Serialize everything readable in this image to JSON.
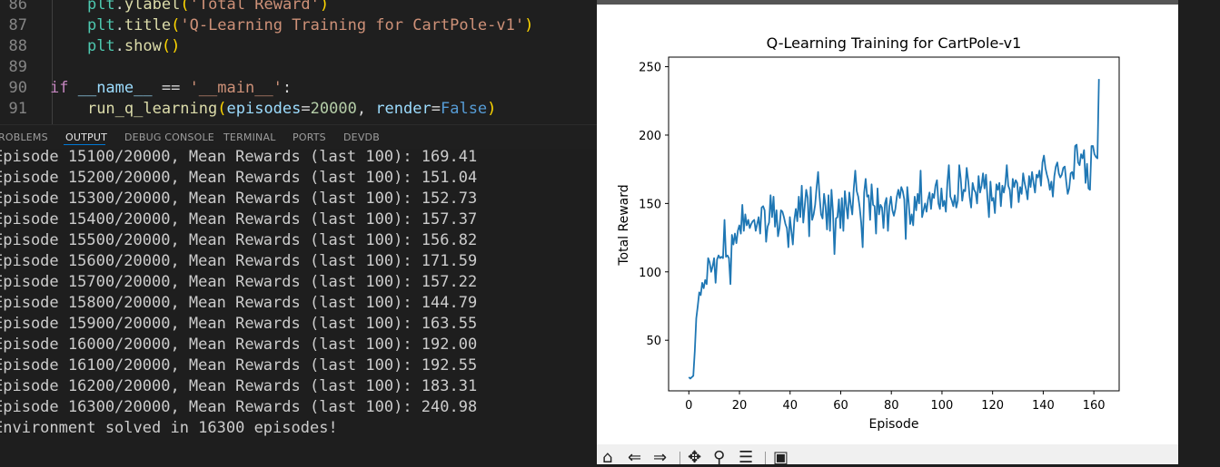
{
  "editor": {
    "lines": [
      {
        "num": "86",
        "tokens": [
          {
            "t": "    ",
            "c": "op"
          },
          {
            "t": "plt",
            "c": "cls"
          },
          {
            "t": ".",
            "c": "op"
          },
          {
            "t": "ylabel",
            "c": "fn"
          },
          {
            "t": "(",
            "c": "paren"
          },
          {
            "t": "'Total Reward'",
            "c": "str"
          },
          {
            "t": ")",
            "c": "paren"
          }
        ]
      },
      {
        "num": "87",
        "tokens": [
          {
            "t": "    ",
            "c": "op"
          },
          {
            "t": "plt",
            "c": "cls"
          },
          {
            "t": ".",
            "c": "op"
          },
          {
            "t": "title",
            "c": "fn"
          },
          {
            "t": "(",
            "c": "paren"
          },
          {
            "t": "'Q-Learning Training for CartPole-v1'",
            "c": "str"
          },
          {
            "t": ")",
            "c": "paren"
          }
        ]
      },
      {
        "num": "88",
        "tokens": [
          {
            "t": "    ",
            "c": "op"
          },
          {
            "t": "plt",
            "c": "cls"
          },
          {
            "t": ".",
            "c": "op"
          },
          {
            "t": "show",
            "c": "fn"
          },
          {
            "t": "()",
            "c": "paren"
          }
        ]
      },
      {
        "num": "89",
        "tokens": []
      },
      {
        "num": "90",
        "tokens": [
          {
            "t": "if ",
            "c": "kw"
          },
          {
            "t": "__name__",
            "c": "var"
          },
          {
            "t": " == ",
            "c": "op"
          },
          {
            "t": "'__main__'",
            "c": "str"
          },
          {
            "t": ":",
            "c": "op"
          }
        ]
      },
      {
        "num": "91",
        "tokens": [
          {
            "t": "    ",
            "c": "op"
          },
          {
            "t": "run_q_learning",
            "c": "fn"
          },
          {
            "t": "(",
            "c": "paren"
          },
          {
            "t": "episodes",
            "c": "var"
          },
          {
            "t": "=",
            "c": "op"
          },
          {
            "t": "20000",
            "c": "num"
          },
          {
            "t": ", ",
            "c": "op"
          },
          {
            "t": "render",
            "c": "var"
          },
          {
            "t": "=",
            "c": "op"
          },
          {
            "t": "False",
            "c": "const"
          },
          {
            "t": ")",
            "c": "paren"
          }
        ]
      }
    ]
  },
  "panel": {
    "tabs": [
      "ROBLEMS",
      "OUTPUT",
      "DEBUG CONSOLE",
      "TERMINAL",
      "PORTS",
      "DEVDB"
    ],
    "active_tab": "OUTPUT"
  },
  "output": {
    "lines": [
      "Episode 15100/20000, Mean Rewards (last 100): 169.41",
      "Episode 15200/20000, Mean Rewards (last 100): 151.04",
      "Episode 15300/20000, Mean Rewards (last 100): 152.73",
      "Episode 15400/20000, Mean Rewards (last 100): 157.37",
      "Episode 15500/20000, Mean Rewards (last 100): 156.82",
      "Episode 15600/20000, Mean Rewards (last 100): 171.59",
      "Episode 15700/20000, Mean Rewards (last 100): 157.22",
      "Episode 15800/20000, Mean Rewards (last 100): 144.79",
      "Episode 15900/20000, Mean Rewards (last 100): 163.55",
      "Episode 16000/20000, Mean Rewards (last 100): 192.00",
      "Episode 16100/20000, Mean Rewards (last 100): 192.55",
      "Episode 16200/20000, Mean Rewards (last 100): 183.31",
      "Episode 16300/20000, Mean Rewards (last 100): 240.98",
      "Environment solved in 16300 episodes!"
    ]
  },
  "toolbar": {
    "icons": [
      "home-icon",
      "back-icon",
      "forward-icon",
      "pan-icon",
      "zoom-icon",
      "configure-icon",
      "save-icon"
    ]
  },
  "colors": {
    "line": "#1f77b4",
    "accent": "#0078d4"
  },
  "chart_data": {
    "type": "line",
    "title": "Q-Learning Training for CartPole-v1",
    "xlabel": "Episode",
    "ylabel": "Total Reward",
    "xlim": [
      -8,
      170
    ],
    "ylim": [
      13,
      257
    ],
    "xticks": [
      0,
      20,
      40,
      60,
      80,
      100,
      120,
      140,
      160
    ],
    "yticks": [
      50,
      100,
      150,
      200,
      250
    ],
    "grid": false,
    "series": [
      {
        "values": [
          23,
          22,
          23,
          24,
          42,
          66,
          75,
          85,
          83,
          92,
          88,
          94,
          91,
          110,
          107,
          100,
          104,
          110,
          92,
          109,
          112,
          110,
          111,
          110,
          138,
          111,
          112,
          110,
          91,
          127,
          120,
          128,
          121,
          130,
          134,
          128,
          149,
          130,
          142,
          134,
          138,
          132,
          135,
          137,
          138,
          130,
          135,
          140,
          128,
          147,
          148,
          145,
          122,
          133,
          136,
          156,
          140,
          155,
          133,
          145,
          126,
          132,
          145,
          144,
          140,
          135,
          132,
          118,
          140,
          130,
          120,
          138,
          146,
          137,
          155,
          140,
          163,
          136,
          148,
          160,
          154,
          126,
          162,
          138,
          142,
          149,
          162,
          173,
          155,
          142,
          139,
          157,
          148,
          131,
          156,
          130,
          160,
          144,
          113,
          139,
          140,
          153,
          132,
          154,
          130,
          159,
          148,
          139,
          158,
          149,
          142,
          161,
          174,
          159,
          155,
          147,
          136,
          118,
          158,
          168,
          155,
          156,
          138,
          164,
          149,
          148,
          128,
          161,
          142,
          149,
          147,
          132,
          150,
          154,
          130,
          148,
          155,
          145,
          141,
          146,
          155,
          160,
          154,
          162,
          159,
          153,
          124,
          162,
          150,
          135,
          142,
          134,
          155,
          145,
          157,
          150,
          174,
          140,
          145,
          150,
          144,
          153,
          158,
          146,
          157,
          154,
          163,
          167,
          150,
          146,
          161,
          148,
          152,
          144,
          165,
          178,
          155,
          152,
          148,
          156,
          147,
          152,
          178,
          168,
          152,
          160,
          159,
          176,
          167,
          155,
          147,
          165,
          160,
          158,
          150,
          170,
          158,
          163,
          172,
          161,
          171,
          154,
          140,
          166,
          152,
          154,
          143,
          164,
          160,
          165,
          148,
          163,
          158,
          164,
          178,
          163,
          160,
          147,
          168,
          162,
          167,
          165,
          151,
          162,
          157,
          172,
          165,
          160,
          153,
          170,
          162,
          173,
          165,
          158,
          171,
          169,
          174,
          163,
          180,
          185,
          176,
          171,
          167,
          160,
          166,
          155,
          170,
          177,
          180,
          172,
          169,
          171,
          176,
          177,
          166,
          157,
          161,
          172,
          173,
          168,
          192,
          193,
          180,
          178,
          186,
          183,
          189,
          165,
          179,
          161,
          160,
          192,
          192,
          186,
          184,
          183,
          241
        ]
      }
    ]
  }
}
